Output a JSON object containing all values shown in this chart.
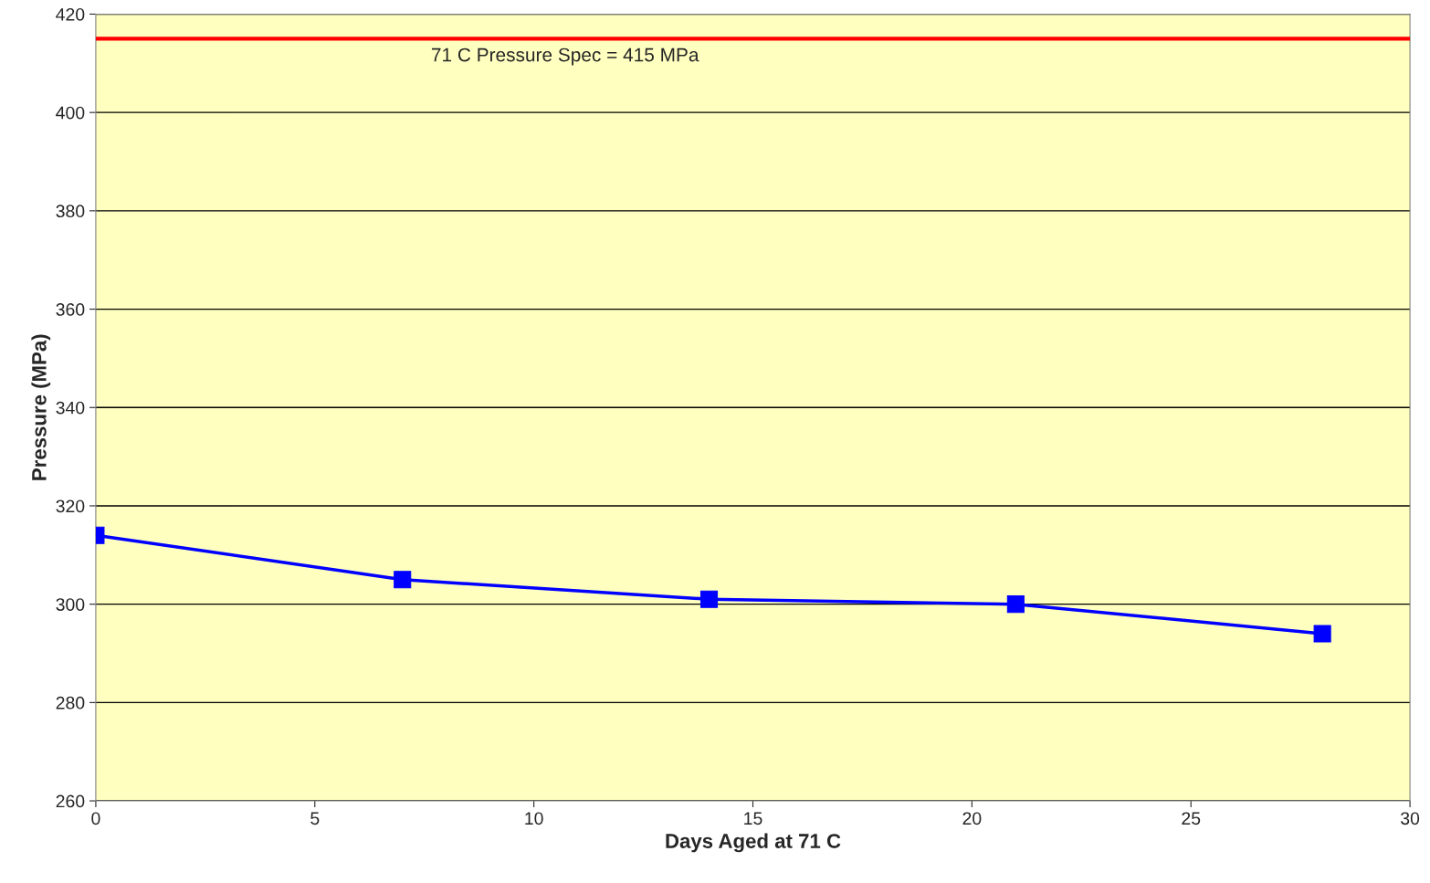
{
  "chart_data": {
    "type": "line",
    "xlabel": "Days Aged at 71 C",
    "ylabel": "Pressure (MPa)",
    "x": [
      0,
      7,
      14,
      21,
      28
    ],
    "series": [
      {
        "color": "#0000ff",
        "values": [
          314,
          305,
          301,
          300,
          294
        ]
      }
    ],
    "ref_lines": [
      {
        "axis": "y",
        "value": 415,
        "label": "71 C Pressure Spec = 415 MPa",
        "color": "#ff0000"
      }
    ],
    "xlim": [
      0,
      30
    ],
    "xticks": [
      0,
      5,
      10,
      15,
      20,
      25,
      30
    ],
    "ylim": [
      260,
      420
    ],
    "yticks": [
      260,
      280,
      300,
      320,
      340,
      360,
      380,
      400,
      420
    ],
    "grid": "y",
    "marker": "square",
    "line_style": "solid"
  }
}
